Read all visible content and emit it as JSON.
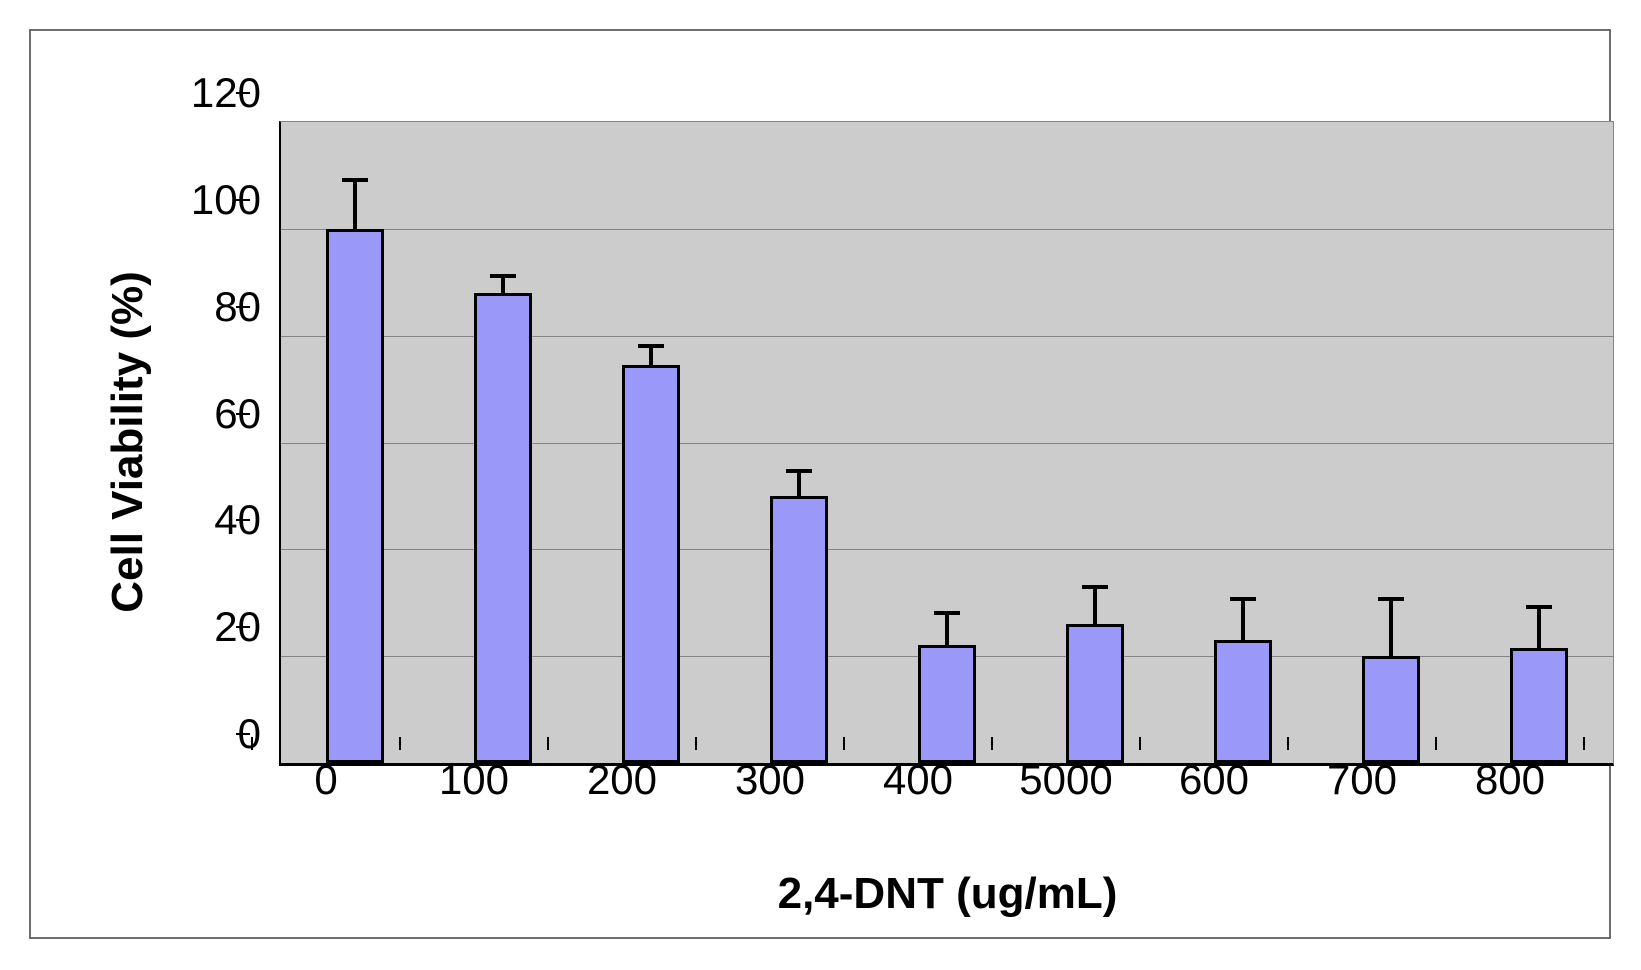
{
  "chart_data": {
    "type": "bar",
    "title": "",
    "xlabel": "2,4-DNT (ug/mL)",
    "ylabel": "Cell Viability (%)",
    "categories": [
      "0",
      "100",
      "200",
      "300",
      "400",
      "5000",
      "600",
      "700",
      "800"
    ],
    "values": [
      100,
      88,
      74.5,
      50,
      22,
      26,
      23,
      20,
      21.5
    ],
    "errors_up": [
      9.5,
      3.5,
      4,
      5,
      6.5,
      7.3,
      8,
      11,
      8
    ],
    "ylim": [
      0,
      120
    ],
    "yticks": [
      0,
      20,
      40,
      60,
      80,
      100,
      120
    ],
    "grid": "horizontal",
    "legend": "none",
    "plot_background": "gray",
    "colors": {
      "bar_fill": "#9A99FA",
      "bar_border": "#000000",
      "plot_bg": "#CCCCCC",
      "gridline": "#848484",
      "axis": "#000000",
      "chart_border": "#6E6E6E",
      "background": "#FFFFFF"
    }
  }
}
